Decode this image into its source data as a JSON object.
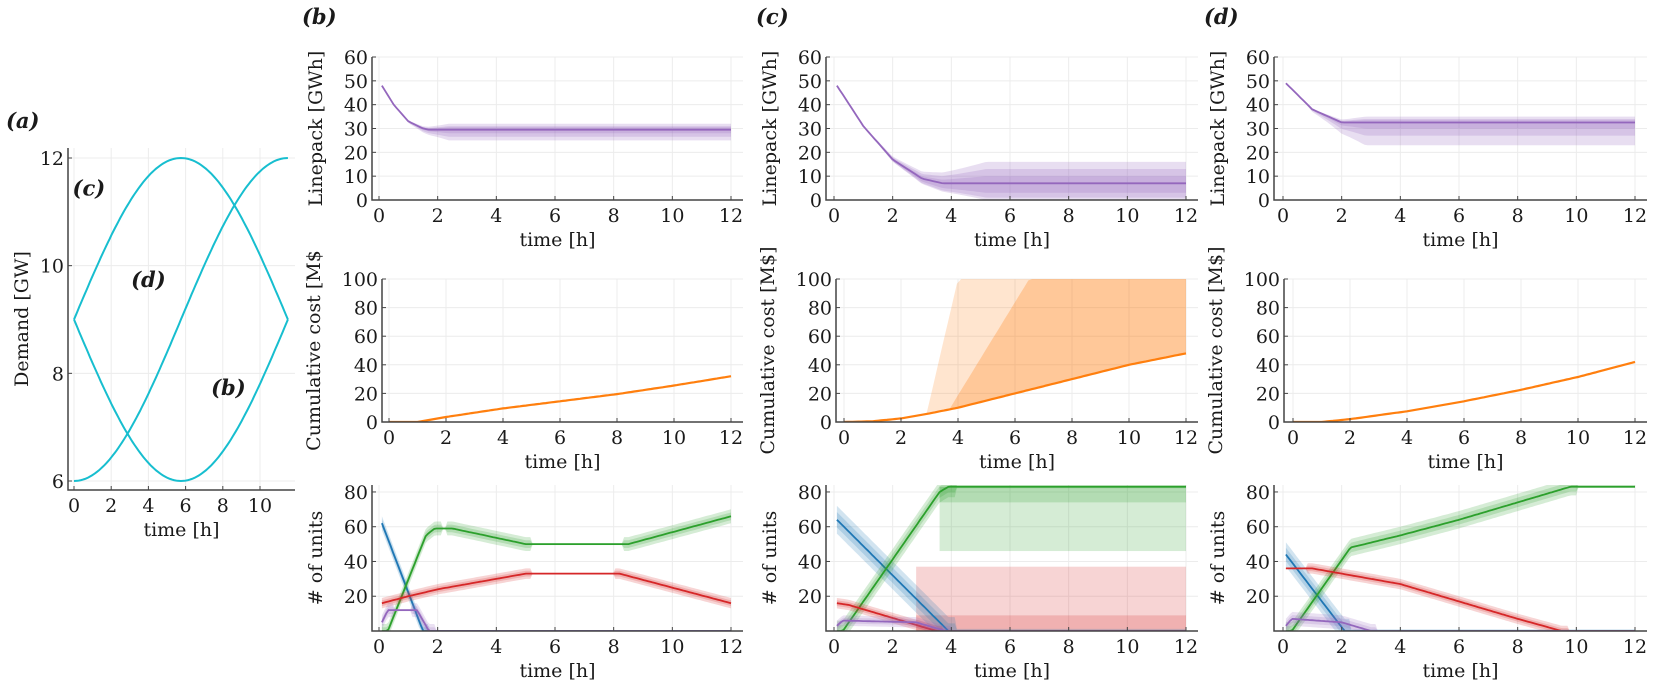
{
  "chart_data": [
    {
      "id": "a",
      "type": "line",
      "panel_label": "(a)",
      "xlabel": "time [h]",
      "ylabel": "Demand [GW]",
      "xlim": [
        0,
        11.5
      ],
      "ylim": [
        6,
        12
      ],
      "xticks": [
        0,
        2,
        4,
        6,
        8,
        10
      ],
      "yticks": [
        6,
        8,
        10,
        12
      ],
      "grid": true,
      "color": "#17becf",
      "series": [
        {
          "name": "(b)",
          "shape": "9 - 3*sin(pi*t/11.5)",
          "x": [
            0,
            2,
            4,
            5.75,
            8,
            10,
            11.5
          ],
          "y": [
            9,
            7.4,
            6.3,
            6,
            6.6,
            8.2,
            9
          ]
        },
        {
          "name": "(c)",
          "shape": "9 + 3*sin(pi*t/11.5)",
          "x": [
            0,
            2,
            4,
            5.75,
            8,
            10,
            11.5
          ],
          "y": [
            9,
            10.6,
            11.7,
            12,
            11.4,
            9.8,
            9
          ]
        },
        {
          "name": "(d)",
          "shape": "9 - 3*cos(pi*t/11.5)",
          "x": [
            0,
            2,
            4,
            5.75,
            8,
            10,
            11.5
          ],
          "y": [
            6,
            6.4,
            7.4,
            9,
            11.0,
            11.7,
            12
          ]
        }
      ],
      "annotations": [
        {
          "text": "(c)",
          "x": 0.8,
          "y": 11.3
        },
        {
          "text": "(d)",
          "x": 4.0,
          "y": 9.6
        },
        {
          "text": "(b)",
          "x": 8.3,
          "y": 7.6
        }
      ]
    },
    {
      "id": "b",
      "panel_label": "(b)",
      "subplots": [
        {
          "type": "area",
          "ylabel": "Linepack [GWh]",
          "xlabel": "time [h]",
          "xlim": [
            0,
            12
          ],
          "ylim": [
            0,
            60
          ],
          "yticks": [
            0,
            10,
            20,
            30,
            40,
            50,
            60
          ],
          "xticks": [
            0,
            2,
            4,
            6,
            8,
            10,
            12
          ],
          "color": "#9467bd",
          "median": {
            "x": [
              0.1,
              0.5,
              1.0,
              1.5,
              1.7,
              12
            ],
            "y": [
              48,
              40,
              33,
              30,
              29.5,
              29.5
            ]
          },
          "bands": [
            {
              "lo": 25,
              "hi": 32
            },
            {
              "lo": 26.5,
              "hi": 31
            },
            {
              "lo": 28,
              "hi": 30.5
            }
          ]
        },
        {
          "type": "line",
          "ylabel": "Cumulative cost [M$",
          "xlabel": "time [h]",
          "xlim": [
            0,
            12
          ],
          "ylim": [
            0,
            100
          ],
          "yticks": [
            0,
            20,
            40,
            60,
            80,
            100
          ],
          "xticks": [
            0,
            2,
            4,
            6,
            8,
            10,
            12
          ],
          "color": "#ff7f0e",
          "median": {
            "x": [
              0,
              1,
              2,
              4,
              6,
              8,
              10,
              12
            ],
            "y": [
              0,
              0,
              3.5,
              9.5,
              14.5,
              19.5,
              25.5,
              32
            ]
          }
        },
        {
          "type": "line",
          "ylabel": "# of units",
          "xlabel": "time [h]",
          "xlim": [
            0,
            12
          ],
          "ylim": [
            0,
            84
          ],
          "yticks": [
            20,
            40,
            60,
            80
          ],
          "xticks": [
            0,
            2,
            4,
            6,
            8,
            10,
            12
          ],
          "series": [
            {
              "name": "blue",
              "color": "#1f77b4",
              "x": [
                0.1,
                1.5,
                12
              ],
              "y": [
                62,
                0,
                0
              ],
              "spread": 4
            },
            {
              "name": "green",
              "color": "#2ca02c",
              "x": [
                0.1,
                0.3,
                1.6,
                1.9,
                2.5,
                5,
                8.5,
                12
              ],
              "y": [
                0,
                0,
                55,
                59,
                59,
                50,
                50,
                66
              ],
              "spread": 4
            },
            {
              "name": "red",
              "color": "#d62728",
              "x": [
                0.1,
                1,
                2,
                5,
                8.2,
                12
              ],
              "y": [
                16,
                20,
                24,
                33,
                33,
                16
              ],
              "spread": 3
            },
            {
              "name": "purple",
              "color": "#9467bd",
              "x": [
                0.1,
                0.3,
                1.3,
                1.7,
                12
              ],
              "y": [
                5,
                12,
                12,
                0,
                0
              ],
              "spread": 4
            }
          ]
        }
      ]
    },
    {
      "id": "c",
      "panel_label": "(c)",
      "subplots": [
        {
          "type": "area",
          "ylabel": "Linepack [GWh]",
          "xlabel": "time [h]",
          "xlim": [
            0,
            12
          ],
          "ylim": [
            0,
            60
          ],
          "yticks": [
            0,
            10,
            20,
            30,
            40,
            50,
            60
          ],
          "xticks": [
            0,
            2,
            4,
            6,
            8,
            10,
            12
          ],
          "color": "#9467bd",
          "median": {
            "x": [
              0.1,
              1,
              2,
              3,
              3.7,
              12
            ],
            "y": [
              48,
              31,
              17,
              9,
              7,
              7
            ]
          },
          "bands": [
            {
              "lo": 0,
              "hi": 16
            },
            {
              "lo": 1,
              "hi": 13
            },
            {
              "lo": 3,
              "hi": 10
            }
          ]
        },
        {
          "type": "area",
          "ylabel": "Cumulative cost [M$]",
          "xlabel": "time [h]",
          "xlim": [
            0,
            12
          ],
          "ylim": [
            0,
            100
          ],
          "yticks": [
            0,
            20,
            40,
            60,
            80,
            100
          ],
          "xticks": [
            0,
            2,
            4,
            6,
            8,
            10,
            12
          ],
          "color": "#ff7f0e",
          "median": {
            "x": [
              0,
              1,
              2,
              3,
              4,
              6,
              8,
              10,
              12
            ],
            "y": [
              0,
              0.5,
              2.5,
              6,
              10,
              20,
              30,
              40,
              48
            ]
          },
          "bands": [
            {
              "name": "outer",
              "x": [
                2.9,
                4.0,
                12
              ],
              "hi": [
                6,
                100,
                100
              ]
            },
            {
              "name": "inner",
              "x": [
                3.7,
                6.5,
                12
              ],
              "hi": [
                9,
                100,
                100
              ]
            }
          ]
        },
        {
          "type": "line",
          "ylabel": "# of units",
          "xlabel": "time [h]",
          "xlim": [
            0,
            12
          ],
          "ylim": [
            0,
            84
          ],
          "yticks": [
            20,
            40,
            60,
            80
          ],
          "xticks": [
            0,
            2,
            4,
            6,
            8,
            10,
            12
          ],
          "series": [
            {
              "name": "blue",
              "color": "#1f77b4",
              "x": [
                0.1,
                3.9,
                12
              ],
              "y": [
                64,
                0,
                0
              ],
              "spread": 8
            },
            {
              "name": "green",
              "color": "#2ca02c",
              "x": [
                0.1,
                0.3,
                3.6,
                3.9,
                12
              ],
              "y": [
                0,
                0,
                80,
                83,
                83
              ],
              "spread": 6
            },
            {
              "name": "red",
              "color": "#d62728",
              "x": [
                0.1,
                0.5,
                3.5,
                12
              ],
              "y": [
                16,
                15,
                0,
                0
              ],
              "spread": 3
            },
            {
              "name": "purple",
              "color": "#9467bd",
              "x": [
                0.1,
                0.3,
                2.8,
                3.8,
                12
              ],
              "y": [
                3,
                6,
                5,
                0,
                0
              ],
              "spread": 3
            }
          ],
          "uncertainty_blocks": [
            {
              "color": "#2ca02c",
              "x": [
                3.6,
                12
              ],
              "lo": 46,
              "hi": 83,
              "inner_lo": 74
            },
            {
              "color": "#d62728",
              "x": [
                2.8,
                12
              ],
              "lo": 0,
              "hi": 37,
              "inner_hi": 9
            }
          ]
        }
      ]
    },
    {
      "id": "d",
      "panel_label": "(d)",
      "subplots": [
        {
          "type": "area",
          "ylabel": "Linepack [GWh]",
          "xlabel": "time [h]",
          "xlim": [
            0,
            12
          ],
          "ylim": [
            0,
            60
          ],
          "yticks": [
            0,
            10,
            20,
            30,
            40,
            50,
            60
          ],
          "xticks": [
            0,
            2,
            4,
            6,
            8,
            10,
            12
          ],
          "color": "#9467bd",
          "median": {
            "x": [
              0.1,
              1,
              2,
              12
            ],
            "y": [
              49,
              38,
              32.5,
              32.5
            ]
          },
          "bands": [
            {
              "lo": 23,
              "hi": 35
            },
            {
              "lo": 27,
              "hi": 34
            },
            {
              "lo": 30,
              "hi": 33.5
            }
          ]
        },
        {
          "type": "line",
          "ylabel": "Cumulative cost [M$]",
          "xlabel": "time [h]",
          "xlim": [
            0,
            12
          ],
          "ylim": [
            0,
            100
          ],
          "yticks": [
            0,
            20,
            40,
            60,
            80,
            100
          ],
          "xticks": [
            0,
            2,
            4,
            6,
            8,
            10,
            12
          ],
          "color": "#ff7f0e",
          "median": {
            "x": [
              0,
              1,
              2,
              4,
              6,
              8,
              10,
              12
            ],
            "y": [
              0,
              0,
              2,
              7.5,
              14.5,
              22.5,
              31.5,
              42
            ]
          }
        },
        {
          "type": "line",
          "ylabel": "# of units",
          "xlabel": "time [h]",
          "xlim": [
            0,
            12
          ],
          "ylim": [
            0,
            84
          ],
          "yticks": [
            20,
            40,
            60,
            80
          ],
          "xticks": [
            0,
            2,
            4,
            6,
            8,
            10,
            12
          ],
          "series": [
            {
              "name": "blue",
              "color": "#1f77b4",
              "x": [
                0.1,
                2.1,
                12
              ],
              "y": [
                44,
                0,
                0
              ],
              "spread": 7
            },
            {
              "name": "green",
              "color": "#2ca02c",
              "x": [
                0.1,
                0.3,
                2.3,
                4,
                6,
                8,
                9.8,
                12
              ],
              "y": [
                0,
                0,
                48,
                55,
                64,
                74,
                83,
                83
              ],
              "spread": 5
            },
            {
              "name": "red",
              "color": "#d62728",
              "x": [
                0.1,
                1,
                2,
                4,
                6,
                8,
                9.5,
                12
              ],
              "y": [
                36,
                36,
                33,
                27,
                17,
                7,
                0,
                0
              ],
              "spread": 3
            },
            {
              "name": "purple",
              "color": "#9467bd",
              "x": [
                0.1,
                0.3,
                2,
                3,
                12
              ],
              "y": [
                3,
                7,
                5,
                0,
                0
              ],
              "spread": 4
            }
          ]
        }
      ]
    }
  ]
}
